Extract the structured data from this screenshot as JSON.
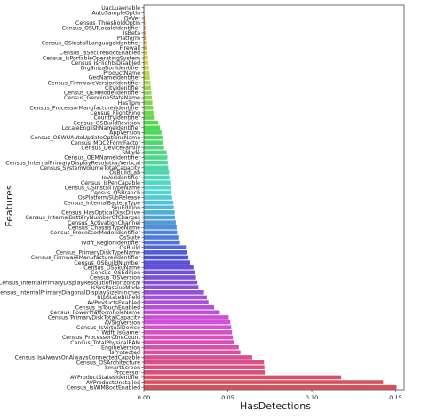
{
  "chart_data": {
    "type": "bar",
    "orientation": "horizontal",
    "title": "",
    "xlabel": "HasDetections",
    "ylabel": "Features",
    "xlim": [
      0,
      0.155
    ],
    "xticks": [
      "0.00",
      "0.05",
      "0.10",
      "0.15"
    ],
    "grid": false,
    "legend": "none",
    "palette": "husl",
    "categories": [
      "UacLuaenable",
      "AutoSampleOptIn",
      "OsVer",
      "Census_ThresholdOptIn",
      "Census_OSUILocaleIdentifier",
      "IsBeta",
      "Platform",
      "Census_OSInstallLanguageIdentifier",
      "Firewall",
      "Census_IsSecureBootEnabled",
      "Census_IsPortableOperatingSystem",
      "Census_IsFlightsDisabled",
      "OrganizationIdentifier",
      "ProductName",
      "GeoNameIdentifier",
      "Census_FirmwareVersionIdentifier",
      "CityIdentifier",
      "Census_OEMModelIdentifier",
      "Census_GenuineStateName",
      "HasTpm",
      "Census_ProcessorManufacturerIdentifier",
      "Census_FlightRing",
      "CountryIdentifier",
      "Census_OSBuildRevision",
      "LocaleEnglishNameIdentifier",
      "AppVersion",
      "Census_OSWUAutoUpdateOptionsName",
      "Census_MDC2FormFactor",
      "Census_DeviceFamily",
      "SMode",
      "Census_OEMNameIdentifier",
      "Census_InternalPrimaryDisplayResolutionVertical",
      "Census_SystemVolumeTotalCapacity",
      "OsBuildLab",
      "IeVerIdentifier",
      "Census_IsPenCapable",
      "Census_OSInstallTypeName",
      "Census_OSBranch",
      "OsPlatformSubRelease",
      "Census_InternalBatteryType",
      "SkuEdition",
      "Census_HasOpticalDiskDrive",
      "Census_InternalBatteryNumberOfCharges",
      "Census_ActivationChannel",
      "Census_ChassisTypeName",
      "Census_ProcessorModelIdentifier",
      "OsSuite",
      "Wdft_RegionIdentifier",
      "OsBuild",
      "Census_PrimaryDiskTypeName",
      "Census_FirmwareManufacturerIdentifier",
      "Census_OSBuildNumber",
      "Census_OSSkuName",
      "Census_OSEdition",
      "Census_OSVersion",
      "Census_InternalPrimaryDisplayResolutionHorizontal",
      "IsSxsPassiveMode",
      "Census_InternalPrimaryDiagonalDisplaySizeInInches",
      "RtpStateBitfield",
      "AVProductsEnabled",
      "Census_IsTouchEnabled",
      "Census_PowerPlatformRoleName",
      "Census_PrimaryDiskTotalCapacity",
      "AVSigVersion",
      "Census_IsVirtualDevice",
      "Wdft_IsGamer",
      "Census_ProcessorCoreCount",
      "Census_TotalPhysicalRAM",
      "EngineVersion",
      "IsProtected",
      "Census_IsAlwaysOnAlwaysConnectedCapable",
      "Census_OSArchitecture",
      "SmartScreen",
      "Processor",
      "AVProductStatesIdentifier",
      "AVProductsInstalled",
      "Census_IsWIMBootEnabled"
    ],
    "values": [
      0.0001,
      0.0003,
      0.0005,
      0.0007,
      0.0009,
      0.001,
      0.0012,
      0.0014,
      0.0017,
      0.0022,
      0.0025,
      0.0027,
      0.003,
      0.0033,
      0.0036,
      0.0039,
      0.0042,
      0.0045,
      0.0048,
      0.0051,
      0.0054,
      0.0057,
      0.006,
      0.0085,
      0.0095,
      0.0105,
      0.011,
      0.0115,
      0.012,
      0.0135,
      0.014,
      0.0142,
      0.0145,
      0.015,
      0.0152,
      0.0157,
      0.016,
      0.0165,
      0.0168,
      0.0175,
      0.0178,
      0.0183,
      0.0185,
      0.019,
      0.0195,
      0.0198,
      0.0205,
      0.0215,
      0.025,
      0.0258,
      0.0265,
      0.0275,
      0.0295,
      0.0305,
      0.031,
      0.0318,
      0.0325,
      0.0358,
      0.0375,
      0.0385,
      0.0418,
      0.0452,
      0.0505,
      0.0515,
      0.052,
      0.0525,
      0.053,
      0.0535,
      0.0565,
      0.0575,
      0.0645,
      0.0715,
      0.0718,
      0.072,
      0.1175,
      0.1425,
      0.1505
    ]
  }
}
